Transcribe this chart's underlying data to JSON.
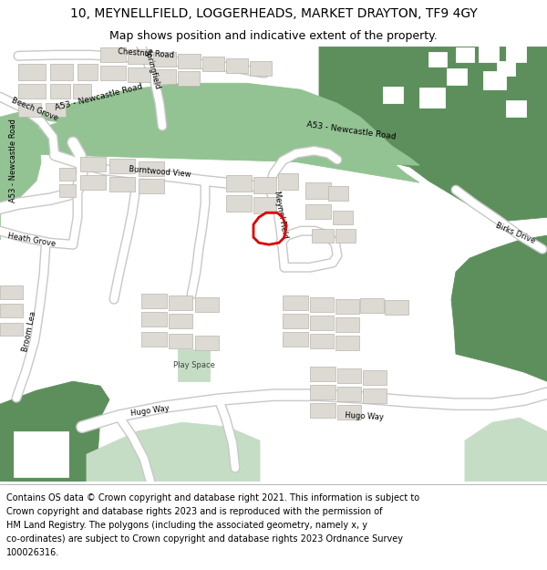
{
  "title": "10, MEYNELLFIELD, LOGGERHEADS, MARKET DRAYTON, TF9 4GY",
  "subtitle": "Map shows position and indicative extent of the property.",
  "footer_lines": [
    "Contains OS data © Crown copyright and database right 2021. This information is subject to",
    "Crown copyright and database rights 2023 and is reproduced with the permission of",
    "HM Land Registry. The polygons (including the associated geometry, namely x, y",
    "co-ordinates) are subject to Crown copyright and database rights 2023 Ordnance Survey",
    "100026316."
  ],
  "bg_color": "#f0ede7",
  "green_dark": "#5d8f5d",
  "green_mid": "#7aad7a",
  "green_light": "#c5ddc5",
  "road_fill": "#ffffff",
  "road_outline": "#c8c8c8",
  "a_road_fill": "#93c293",
  "building_fill": "#dddad4",
  "building_stroke": "#b8b4ae",
  "red_poly": "#dd0000",
  "title_fs": 10,
  "subtitle_fs": 9,
  "footer_fs": 7,
  "label_fs": 6,
  "a_label_fs": 6.5
}
